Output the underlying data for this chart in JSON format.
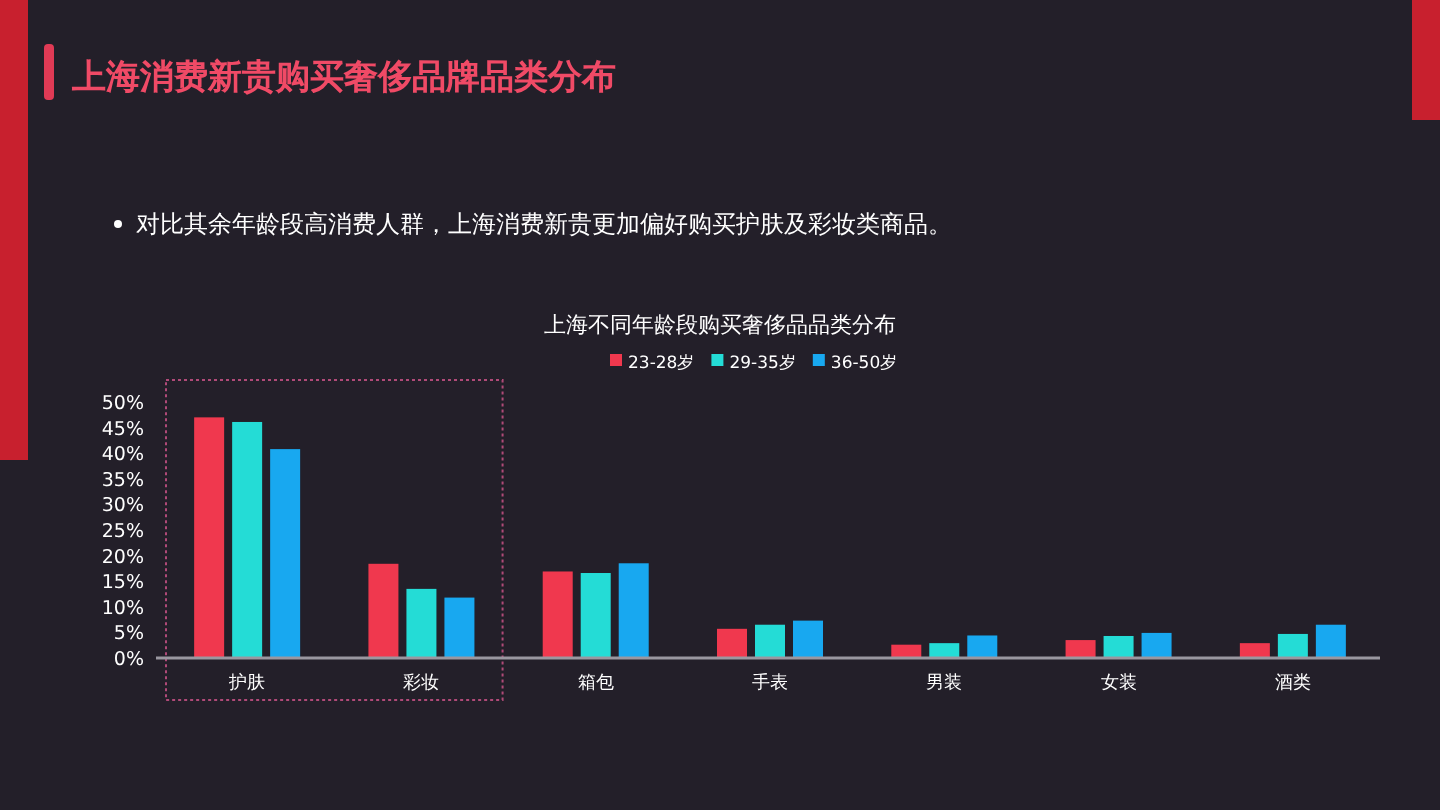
{
  "chart_data": {
    "type": "bar",
    "title": "上海消费新贵购买奢侈品牌品类分布",
    "subtitle": "对比其余年龄段高消费人群，上海消费新贵更加偏好购买护肤及彩妆类商品。",
    "annotations": [
      "上海不同年龄段购买奢侈品品类分布"
    ],
    "categories": [
      "护肤",
      "彩妆",
      "箱包",
      "手表",
      "男装",
      "女装",
      "酒类"
    ],
    "series": [
      {
        "name": "23-28岁",
        "color": "#f0384e",
        "values": [
          47.0,
          18.4,
          16.9,
          5.7,
          2.6,
          3.5,
          2.9
        ]
      },
      {
        "name": "29-35岁",
        "color": "#24dcd6",
        "values": [
          46.1,
          13.5,
          16.6,
          6.5,
          2.9,
          4.3,
          4.7
        ]
      },
      {
        "name": "36-50岁",
        "color": "#18a8f0",
        "values": [
          40.8,
          11.8,
          18.5,
          7.3,
          4.4,
          4.9,
          6.5
        ]
      }
    ],
    "ylim": [
      0,
      50
    ],
    "yticks": [
      {
        "value": 0,
        "label": "0%"
      },
      {
        "value": 5,
        "label": "5%"
      },
      {
        "value": 10,
        "label": "10%"
      },
      {
        "value": 15,
        "label": "15%"
      },
      {
        "value": 20,
        "label": "20%"
      },
      {
        "value": 25,
        "label": "25%"
      },
      {
        "value": 30,
        "label": "30%"
      },
      {
        "value": 35,
        "label": "35%"
      },
      {
        "value": 40,
        "label": "40%"
      },
      {
        "value": 45,
        "label": "45%"
      },
      {
        "value": 50,
        "label": "50%"
      }
    ],
    "grid": false,
    "legend": "top"
  }
}
